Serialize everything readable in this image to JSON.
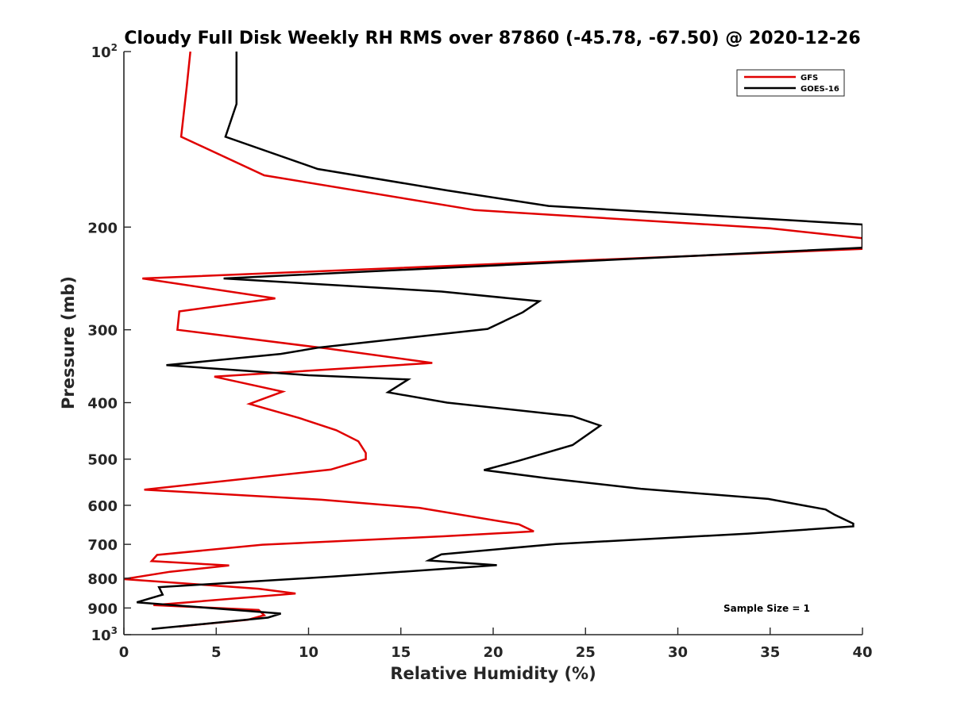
{
  "chart_data": {
    "type": "line",
    "title": "Cloudy Full Disk Weekly RH RMS over 87860 (-45.78, -67.50) @ 2020-12-26",
    "xlabel": "Relative Humidity (%)",
    "ylabel": "Pressure (mb)",
    "xlim": [
      0,
      40
    ],
    "ylim": [
      100,
      1000
    ],
    "y_scale": "log",
    "y_reversed": true,
    "grid": false,
    "x_ticks": [
      "0",
      "5",
      "10",
      "15",
      "20",
      "25",
      "30",
      "35",
      "40"
    ],
    "y_ticks": [
      {
        "value": 100,
        "base": "10",
        "exp": "2"
      },
      {
        "value": 200,
        "label": "200"
      },
      {
        "value": 300,
        "label": "300"
      },
      {
        "value": 400,
        "label": "400"
      },
      {
        "value": 500,
        "label": "500"
      },
      {
        "value": 600,
        "label": "600"
      },
      {
        "value": 700,
        "label": "700"
      },
      {
        "value": 800,
        "label": "800"
      },
      {
        "value": 900,
        "label": "900"
      },
      {
        "value": 1000,
        "base": "10",
        "exp": "3"
      }
    ],
    "legend": {
      "position": "top-right",
      "entries": [
        "GFS",
        "GOES-16"
      ]
    },
    "annotation": "Sample Size = 1",
    "series": [
      {
        "name": "GFS",
        "color": "#e00000",
        "points": [
          [
            3.6,
            100
          ],
          [
            3.4,
            115
          ],
          [
            3.1,
            140
          ],
          [
            7.6,
            163
          ],
          [
            19.0,
            187
          ],
          [
            35.0,
            201
          ],
          [
            40.0,
            209
          ],
          [
            40.0,
            218
          ],
          [
            1.0,
            245
          ],
          [
            8.2,
            265
          ],
          [
            3.0,
            279
          ],
          [
            2.9,
            300
          ],
          [
            11.0,
            323
          ],
          [
            16.7,
            342
          ],
          [
            4.9,
            361
          ],
          [
            8.6,
            383
          ],
          [
            6.8,
            402
          ],
          [
            9.5,
            425
          ],
          [
            11.5,
            446
          ],
          [
            12.7,
            466
          ],
          [
            13.1,
            488
          ],
          [
            13.1,
            500
          ],
          [
            11.2,
            521
          ],
          [
            1.1,
            564
          ],
          [
            10.7,
            587
          ],
          [
            16.0,
            606
          ],
          [
            21.4,
            647
          ],
          [
            22.2,
            665
          ],
          [
            17.3,
            678
          ],
          [
            7.5,
            701
          ],
          [
            1.8,
            730
          ],
          [
            1.5,
            748
          ],
          [
            5.7,
            761
          ],
          [
            2.5,
            780
          ],
          [
            0.0,
            803
          ],
          [
            7.3,
            834
          ],
          [
            9.3,
            850
          ],
          [
            1.6,
            890
          ],
          [
            7.3,
            907
          ],
          [
            7.6,
            926
          ],
          [
            6.7,
            943
          ],
          [
            3.0,
            968
          ]
        ]
      },
      {
        "name": "GOES-16",
        "color": "#000000",
        "points": [
          [
            6.1,
            100
          ],
          [
            6.1,
            123
          ],
          [
            5.5,
            140
          ],
          [
            10.5,
            159
          ],
          [
            17.5,
            173
          ],
          [
            23.0,
            184
          ],
          [
            40.0,
            198
          ],
          [
            40.0,
            217
          ],
          [
            5.4,
            245
          ],
          [
            17.2,
            258
          ],
          [
            22.5,
            268
          ],
          [
            21.6,
            280
          ],
          [
            19.7,
            299
          ],
          [
            10.5,
            322
          ],
          [
            8.5,
            330
          ],
          [
            2.3,
            345
          ],
          [
            10.0,
            359
          ],
          [
            15.4,
            365
          ],
          [
            14.3,
            384
          ],
          [
            17.5,
            400
          ],
          [
            24.3,
            422
          ],
          [
            25.8,
            438
          ],
          [
            24.3,
            473
          ],
          [
            21.4,
            503
          ],
          [
            19.5,
            522
          ],
          [
            22.9,
            539
          ],
          [
            28.0,
            562
          ],
          [
            34.9,
            585
          ],
          [
            38.0,
            610
          ],
          [
            38.5,
            623
          ],
          [
            39.5,
            645
          ],
          [
            39.5,
            652
          ],
          [
            33.8,
            671
          ],
          [
            23.4,
            699
          ],
          [
            17.2,
            728
          ],
          [
            16.5,
            746
          ],
          [
            20.2,
            760
          ],
          [
            11.3,
            795
          ],
          [
            1.9,
            829
          ],
          [
            2.1,
            854
          ],
          [
            0.7,
            880
          ],
          [
            8.5,
            920
          ],
          [
            7.8,
            935
          ],
          [
            1.5,
            978
          ]
        ]
      }
    ]
  }
}
